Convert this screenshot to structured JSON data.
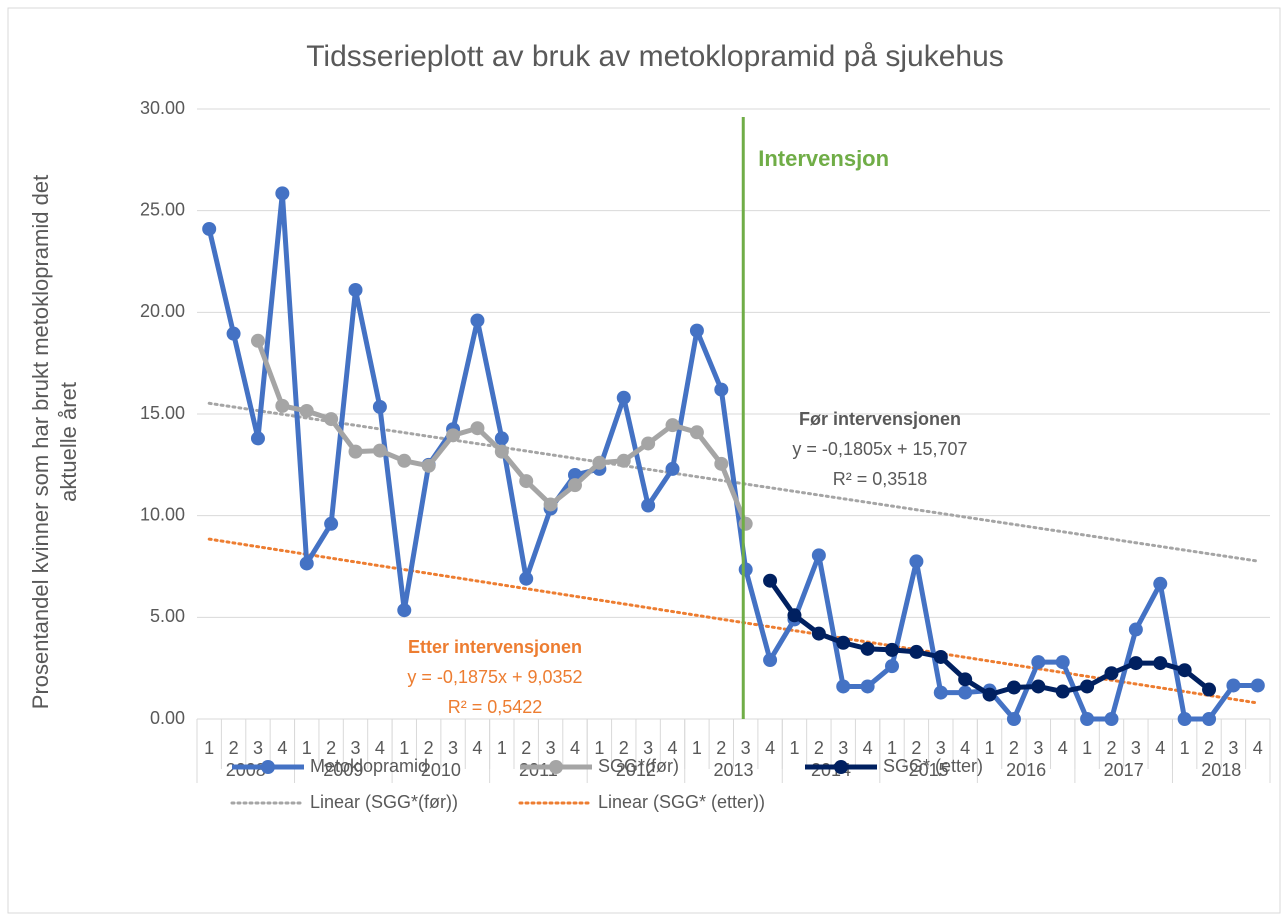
{
  "chart_data": {
    "type": "line",
    "title": "Tidsserieplott av bruk av metoklopramid på sjukehus",
    "ylabel": [
      "Prosentandel kvinner som har brukt metoklopramid det",
      "aktuelle året"
    ],
    "categories": [
      "1",
      "2",
      "3",
      "4",
      "1",
      "2",
      "3",
      "4",
      "1",
      "2",
      "3",
      "4",
      "1",
      "2",
      "3",
      "4",
      "1",
      "2",
      "3",
      "4",
      "1",
      "2",
      "3",
      "4",
      "1",
      "2",
      "3",
      "4",
      "1",
      "2",
      "3",
      "4",
      "1",
      "2",
      "3",
      "4",
      "1",
      "2",
      "3",
      "4",
      "1",
      "2",
      "3",
      "4"
    ],
    "category_groups": [
      "2008",
      "2009",
      "2010",
      "2011",
      "2012",
      "2013",
      "2014",
      "2015",
      "2016",
      "2017",
      "2018"
    ],
    "ylim": [
      0,
      30
    ],
    "yticks": [
      {
        "value": 0,
        "label": "0.00"
      },
      {
        "value": 5,
        "label": "5.00"
      },
      {
        "value": 10,
        "label": "10.00"
      },
      {
        "value": 15,
        "label": "15.00"
      },
      {
        "value": 20,
        "label": "20.00"
      },
      {
        "value": 25,
        "label": "25.00"
      },
      {
        "value": 30,
        "label": "30.00"
      }
    ],
    "grid": true,
    "series": [
      {
        "name": "Metoklopramid",
        "color": "#4472c4",
        "values": [
          24.1,
          18.95,
          13.8,
          25.85,
          7.65,
          9.6,
          21.1,
          15.35,
          5.35,
          12.5,
          14.25,
          19.6,
          13.8,
          6.9,
          10.35,
          12.0,
          12.3,
          15.8,
          10.5,
          12.3,
          19.1,
          16.2,
          7.35,
          2.9,
          4.9,
          8.05,
          1.6,
          1.6,
          2.6,
          7.75,
          1.3,
          1.3,
          1.4,
          0,
          2.8,
          2.8,
          0,
          0,
          4.4,
          6.65,
          0,
          0,
          1.65,
          1.65
        ]
      },
      {
        "name": "SGG*(før)",
        "color": "#a5a5a5",
        "values": [
          null,
          null,
          18.6,
          15.4,
          15.15,
          14.75,
          13.15,
          13.2,
          12.7,
          12.45,
          13.95,
          14.3,
          13.15,
          11.7,
          10.55,
          11.5,
          12.6,
          12.7,
          13.55,
          14.45,
          14.1,
          12.55,
          9.6,
          null,
          null,
          null,
          null,
          null,
          null,
          null,
          null,
          null,
          null,
          null,
          null,
          null,
          null,
          null,
          null,
          null,
          null,
          null,
          null,
          null
        ]
      },
      {
        "name": "SGG* (etter)",
        "color": "#002060",
        "values": [
          null,
          null,
          null,
          null,
          null,
          null,
          null,
          null,
          null,
          null,
          null,
          null,
          null,
          null,
          null,
          null,
          null,
          null,
          null,
          null,
          null,
          null,
          null,
          6.8,
          5.1,
          4.2,
          3.75,
          3.45,
          3.4,
          3.3,
          3.05,
          1.95,
          1.2,
          1.55,
          1.6,
          1.35,
          1.6,
          2.25,
          2.75,
          2.75,
          2.4,
          1.45,
          null,
          null
        ]
      }
    ],
    "trendlines": [
      {
        "name": "Linear (SGG*(før))",
        "color": "#a5a5a5",
        "slope": -0.1805,
        "intercept": 15.707
      },
      {
        "name": "Linear (SGG* (etter))",
        "color": "#ed7d31",
        "slope": -0.1875,
        "intercept": 9.0352
      }
    ],
    "intervention": {
      "label": "Intervensjon",
      "color": "#70ad47",
      "x": 22
    },
    "annotations": [
      {
        "lines": [
          "Før intervensjonen",
          "y = -0,1805x + 15,707",
          "R² = 0,3518"
        ],
        "color": "#595959"
      },
      {
        "lines": [
          "Etter intervensjonen",
          "y = -0,1875x + 9,0352",
          "R² = 0,5422"
        ],
        "color": "#ed7d31"
      }
    ]
  }
}
